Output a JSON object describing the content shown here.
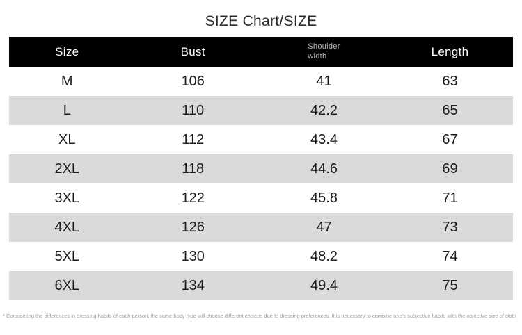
{
  "header": {
    "title": "SIZE Chart/SIZE"
  },
  "chart_data": {
    "type": "table",
    "title": "SIZE Chart/SIZE",
    "columns": [
      {
        "label": "Size",
        "small": false
      },
      {
        "label": "Bust",
        "small": false
      },
      {
        "label": "Shoulder width",
        "small": true,
        "lines": [
          "Shoulder",
          "width"
        ]
      },
      {
        "label": "Length",
        "small": false
      }
    ],
    "rows": [
      [
        "M",
        "106",
        "41",
        "63"
      ],
      [
        "L",
        "110",
        "42.2",
        "65"
      ],
      [
        "XL",
        "112",
        "43.4",
        "67"
      ],
      [
        "2XL",
        "118",
        "44.6",
        "69"
      ],
      [
        "3XL",
        "122",
        "45.8",
        "71"
      ],
      [
        "4XL",
        "126",
        "47",
        "73"
      ],
      [
        "5XL",
        "130",
        "48.2",
        "74"
      ],
      [
        "6XL",
        "134",
        "49.4",
        "75"
      ]
    ],
    "layout": {
      "striped_rows": "even rows gray",
      "header_style": "black bar, white text"
    }
  },
  "footer": {
    "note": "* Considering the differences in dressing habits of each person, the same body type will choose different choices due to dressing preferences. It is necessary to combine one's subjective habits with the objective size of cloth"
  },
  "colors": {
    "page_bg": "#ffffff",
    "header_bg": "#000000",
    "header_text": "#ffffff",
    "subheader_text": "#b5b5b5",
    "row_alt_bg": "#dadada",
    "cell_text": "#1c1c1c",
    "title_text": "#2b2b2b",
    "note_text": "#9b9b9b"
  }
}
